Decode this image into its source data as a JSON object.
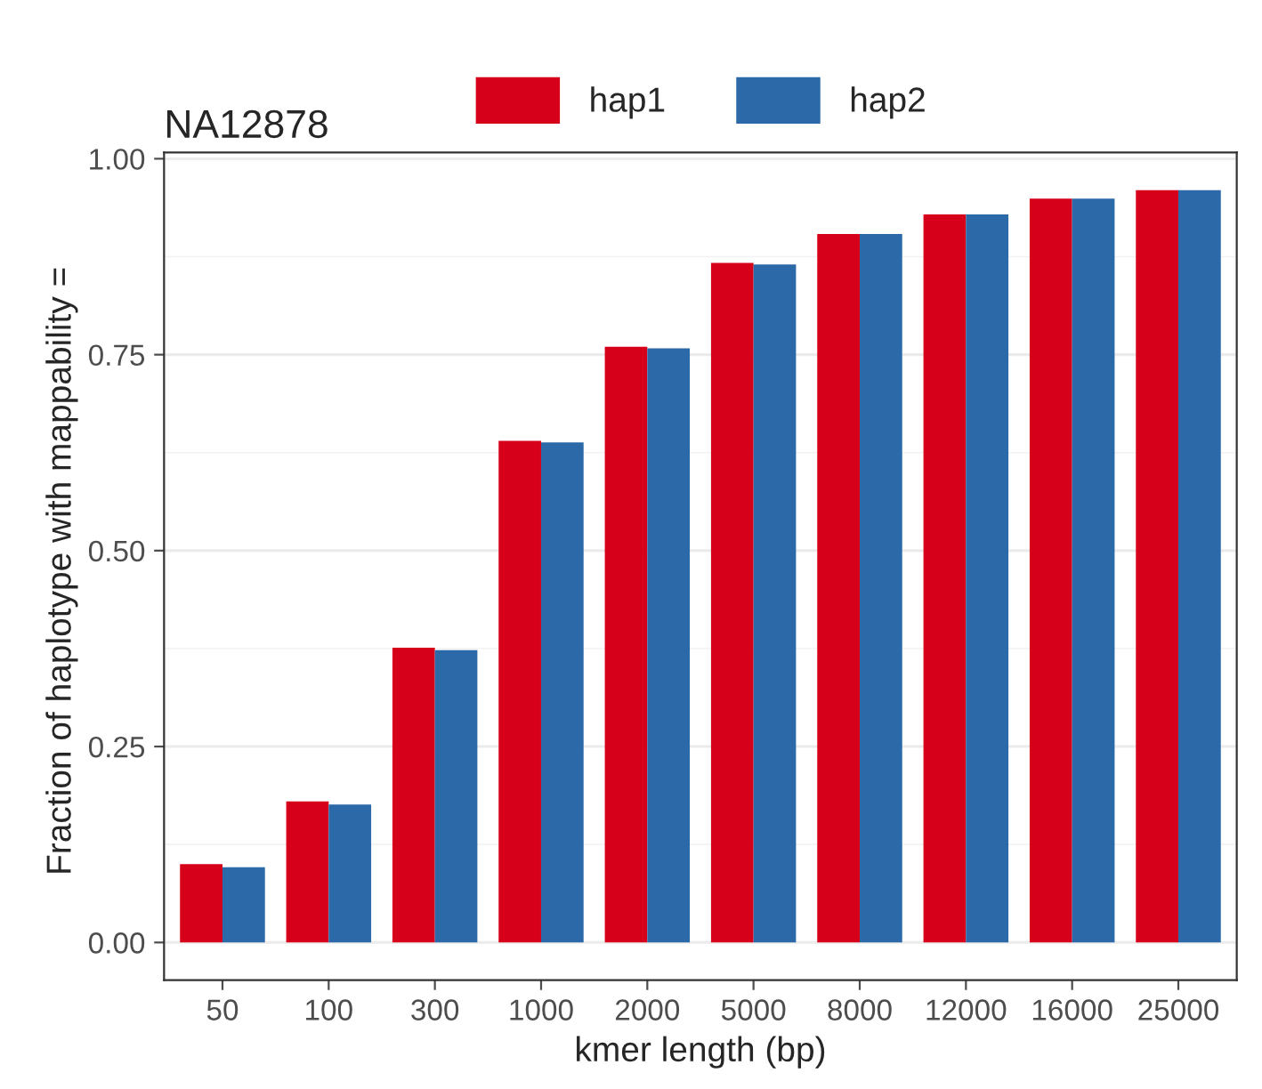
{
  "chart_data": {
    "type": "bar",
    "title": "NA12878",
    "xlabel": "kmer length (bp)",
    "ylabel": "Fraction of haplotype with mappability = ",
    "categories": [
      "50",
      "100",
      "300",
      "1000",
      "2000",
      "5000",
      "8000",
      "12000",
      "16000",
      "25000"
    ],
    "series": [
      {
        "name": "hap1",
        "color": "#d7001a",
        "values": [
          0.1,
          0.18,
          0.376,
          0.64,
          0.76,
          0.867,
          0.904,
          0.929,
          0.949,
          0.96
        ]
      },
      {
        "name": "hap2",
        "color": "#2c69a9",
        "values": [
          0.096,
          0.176,
          0.373,
          0.638,
          0.758,
          0.865,
          0.904,
          0.929,
          0.949,
          0.96
        ]
      }
    ],
    "ylim": [
      -0.048,
      1.008
    ],
    "yticks": [
      {
        "value": 0,
        "label": "0.00"
      },
      {
        "value": 0.25,
        "label": "0.25"
      },
      {
        "value": 0.5,
        "label": "0.50"
      },
      {
        "value": 0.75,
        "label": "0.75"
      },
      {
        "value": 1,
        "label": "1.00"
      }
    ],
    "grid": "y",
    "legend": "top"
  }
}
